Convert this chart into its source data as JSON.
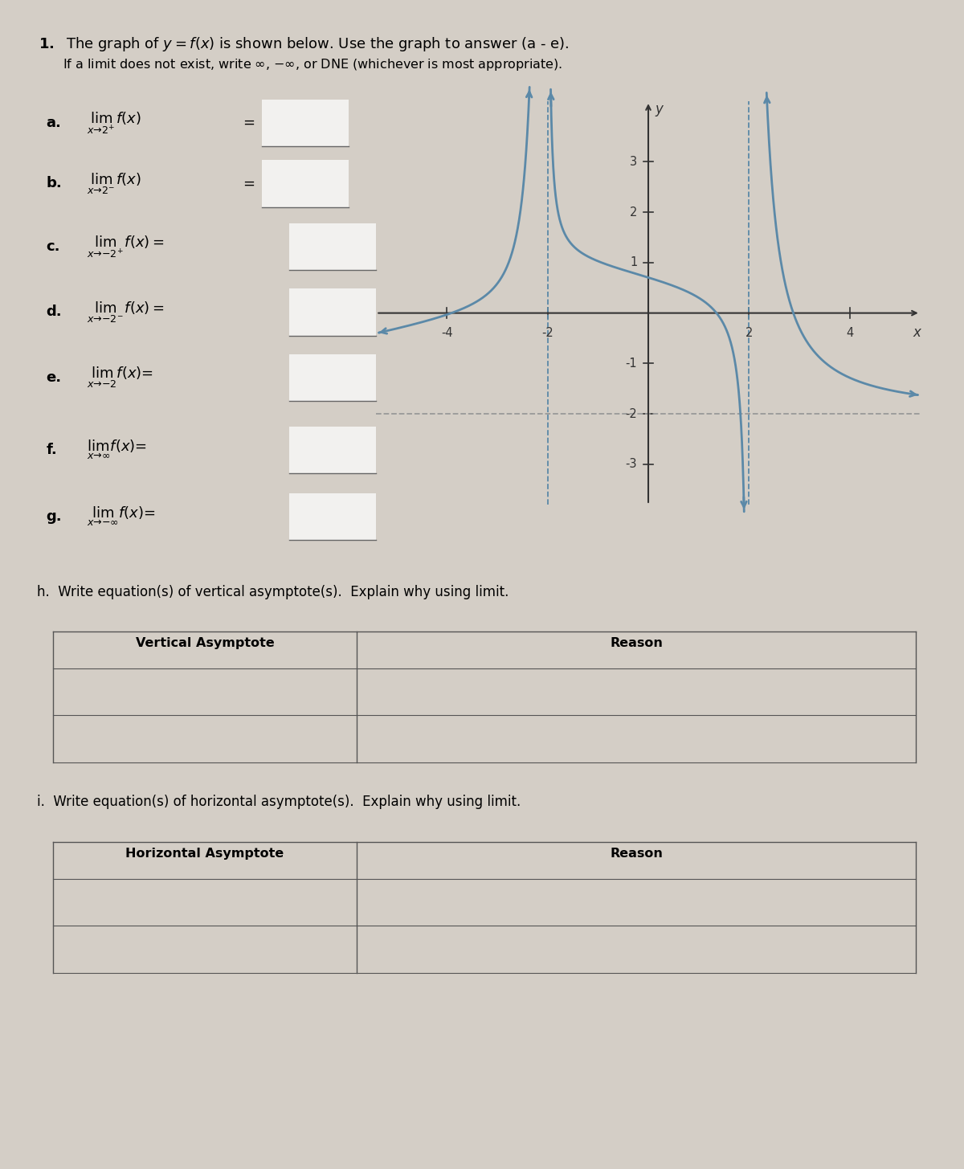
{
  "bg_color": "#d4cec6",
  "curve_color": "#5b89a8",
  "axis_color": "#333333",
  "dashed_vert_color": "#5b89a8",
  "dashed_horiz_color": "#999999",
  "xlim": [
    -5.5,
    5.5
  ],
  "ylim": [
    -4.0,
    4.5
  ],
  "xticks": [
    -4,
    -2,
    2,
    4
  ],
  "yticks": [
    -3,
    -2,
    -1,
    1,
    2,
    3
  ],
  "h_col1": "Vertical Asymptote",
  "h_col2": "Reason",
  "i_col1": "Horizontal Asymptote",
  "i_col2": "Reason"
}
